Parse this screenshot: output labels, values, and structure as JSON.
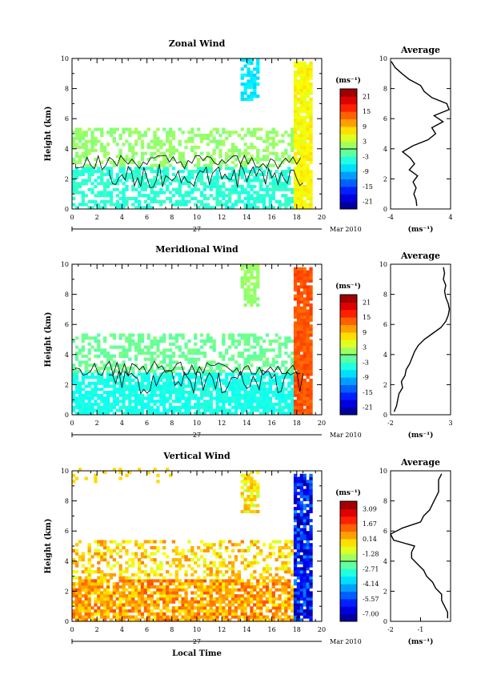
{
  "chart_data": [
    {
      "type": "heatmap",
      "title": "Zonal Wind",
      "ylabel": "Height (km)",
      "xlabel": "",
      "xlim": [
        0,
        20
      ],
      "ylim": [
        0,
        10
      ],
      "x_ticks": [
        "0",
        "2",
        "4",
        "6",
        "8",
        "10",
        "12",
        "14",
        "16",
        "18",
        "20"
      ],
      "y_ticks": [
        "0",
        "2",
        "4",
        "6",
        "8",
        "10"
      ],
      "date_label": "27",
      "month_label": "Mar 2010",
      "colorbar": {
        "unit": "(ms⁻¹)",
        "labels": [
          "21",
          "15",
          "9",
          "3",
          "-3",
          "-9",
          "-15",
          "-21"
        ],
        "vmin": -24,
        "vmax": 24
      },
      "typical_values": {
        "low_band": -4,
        "cloud_region": 1,
        "upper_patch": -7,
        "right_edge": 6
      },
      "average": {
        "title": "Average",
        "xlim": [
          -4,
          4
        ],
        "x_ticks": [
          "-4",
          "4"
        ],
        "xlabel": "(ms⁻¹)",
        "height": [
          0.2,
          0.6,
          1.0,
          1.4,
          1.8,
          2.2,
          2.6,
          3.0,
          3.4,
          3.8,
          4.2,
          4.6,
          5.0,
          5.4,
          5.8,
          6.2,
          6.6,
          7.0,
          7.4,
          7.8,
          8.2,
          8.6,
          9.0,
          9.4,
          9.8
        ],
        "value": [
          -0.5,
          -0.6,
          -0.9,
          -0.6,
          -1.0,
          -0.4,
          -1.5,
          -0.8,
          -1.4,
          -2.4,
          -1.0,
          1.0,
          2.0,
          1.5,
          3.0,
          1.8,
          3.8,
          3.5,
          1.5,
          0.5,
          0.0,
          -1.5,
          -2.5,
          -3.4,
          -3.9
        ]
      }
    },
    {
      "type": "heatmap",
      "title": "Meridional Wind",
      "ylabel": "Height (km)",
      "xlabel": "",
      "xlim": [
        0,
        20
      ],
      "ylim": [
        0,
        10
      ],
      "x_ticks": [
        "0",
        "2",
        "4",
        "6",
        "8",
        "10",
        "12",
        "14",
        "16",
        "18",
        "20"
      ],
      "y_ticks": [
        "0",
        "2",
        "4",
        "6",
        "8",
        "10"
      ],
      "date_label": "27",
      "month_label": "Mar 2010",
      "colorbar": {
        "unit": "(ms⁻¹)",
        "labels": [
          "21",
          "15",
          "9",
          "3",
          "-3",
          "-9",
          "-15",
          "-21"
        ],
        "vmin": -24,
        "vmax": 24
      },
      "typical_values": {
        "low_band": -5,
        "cloud_region": -1,
        "upper_patch": 1,
        "right_edge": 14
      },
      "average": {
        "title": "Average",
        "xlim": [
          -2,
          3
        ],
        "x_ticks": [
          "-2",
          "3"
        ],
        "xlabel": "(ms⁻¹)",
        "height": [
          0.2,
          0.6,
          1.0,
          1.4,
          1.8,
          2.2,
          2.6,
          3.0,
          3.4,
          3.8,
          4.2,
          4.6,
          5.0,
          5.4,
          5.8,
          6.2,
          6.6,
          7.0,
          7.4,
          7.8,
          8.2,
          8.6,
          9.0,
          9.4,
          9.8
        ],
        "value": [
          -1.7,
          -1.5,
          -1.4,
          -1.3,
          -1.0,
          -1.1,
          -0.8,
          -0.7,
          -0.4,
          -0.2,
          0.0,
          0.3,
          0.8,
          1.5,
          2.2,
          2.6,
          2.8,
          2.9,
          2.8,
          2.6,
          2.5,
          2.6,
          2.4,
          2.5,
          2.4
        ]
      }
    },
    {
      "type": "heatmap",
      "title": "Vertical Wind",
      "ylabel": "Height (km)",
      "xlabel": "Local Time",
      "xlim": [
        0,
        20
      ],
      "ylim": [
        0,
        10
      ],
      "x_ticks": [
        "0",
        "2",
        "4",
        "6",
        "8",
        "10",
        "12",
        "14",
        "16",
        "18",
        "20"
      ],
      "y_ticks": [
        "0",
        "2",
        "4",
        "6",
        "8",
        "10"
      ],
      "date_label": "27",
      "month_label": "Mar 2010",
      "colorbar": {
        "unit": "(ms⁻¹)",
        "labels": [
          "3.09",
          "1.67",
          "0.14",
          "-1.28",
          "-2.71",
          "-4.14",
          "-5.57",
          "-7.00"
        ],
        "vmin": -7.71,
        "vmax": 3.8
      },
      "typical_values": {
        "low_band": 0.5,
        "cloud_region": -0.1,
        "upper_patch": -0.4,
        "right_edge": -6.0
      },
      "average": {
        "title": "Average",
        "xlim": [
          -2,
          0
        ],
        "x_ticks": [
          "-2",
          "-1"
        ],
        "xlabel": "(ms⁻¹)",
        "height": [
          0.2,
          0.6,
          1.0,
          1.4,
          1.8,
          2.2,
          2.6,
          3.0,
          3.4,
          3.8,
          4.2,
          4.6,
          5.0,
          5.4,
          5.8,
          6.2,
          6.6,
          7.0,
          7.4,
          7.8,
          8.2,
          8.6,
          9.0,
          9.4,
          9.8
        ],
        "value": [
          -0.1,
          -0.1,
          -0.2,
          -0.3,
          -0.3,
          -0.5,
          -0.6,
          -0.8,
          -0.9,
          -1.1,
          -1.3,
          -1.3,
          -1.2,
          -1.9,
          -2.0,
          -1.6,
          -1.0,
          -0.9,
          -0.7,
          -0.6,
          -0.5,
          -0.4,
          -0.4,
          -0.4,
          -0.3
        ]
      }
    }
  ]
}
